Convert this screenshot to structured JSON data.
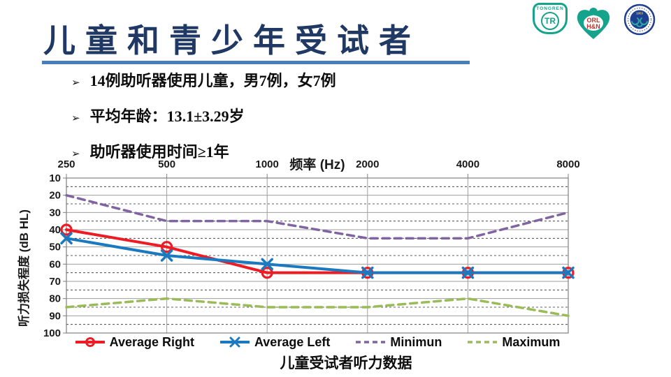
{
  "title": {
    "text": "儿童和青少年受试者"
  },
  "logos": {
    "tongren": {
      "label": "TONGREN",
      "monogram": "TR",
      "color": "#15A38B"
    },
    "orl": {
      "line1": "ORL",
      "line2": "H&N",
      "color": "#15A38B",
      "text_color": "#C2322B"
    },
    "seal": {
      "year": "1953",
      "color": "#1E3F8F",
      "accent": "#2AA9A0",
      "gold": "#E8C34A"
    }
  },
  "bullet_glyph": "➢",
  "bullets": [
    "14例助听器使用儿童，男7例，女7例",
    "平均年龄：13.1±3.29岁",
    "助听器使用时间≥1年"
  ],
  "chart_data": {
    "type": "line",
    "x_axis_title": "频率 (Hz)",
    "y_axis_title": "听力损失程度 (dB HL)",
    "x_labels": [
      "250",
      "500",
      "1000",
      "2000",
      "4000",
      "8000"
    ],
    "y_min": 10,
    "y_max": 100,
    "y_major_step": 10,
    "y_minor_step": 5,
    "y_inverted": true,
    "grid": "major-solid-minor-dashed",
    "legend_position": "bottom",
    "series": [
      {
        "name": "Average Right",
        "color": "#ED1C24",
        "style": "solid",
        "marker": "circle",
        "values": [
          40,
          50,
          65,
          65,
          65,
          65
        ]
      },
      {
        "name": "Average Left",
        "color": "#1B79C0",
        "style": "solid",
        "marker": "x",
        "values": [
          45,
          55,
          60,
          65,
          65,
          65
        ]
      },
      {
        "name": "Minimun",
        "color": "#8064A2",
        "style": "dashed",
        "marker": "none",
        "values": [
          20,
          35,
          35,
          45,
          45,
          30
        ]
      },
      {
        "name": "Maximum",
        "color": "#9BBB59",
        "style": "dashed",
        "marker": "none",
        "values": [
          85,
          80,
          85,
          85,
          80,
          90
        ]
      }
    ]
  },
  "chart_caption": "儿童受试者听力数据"
}
